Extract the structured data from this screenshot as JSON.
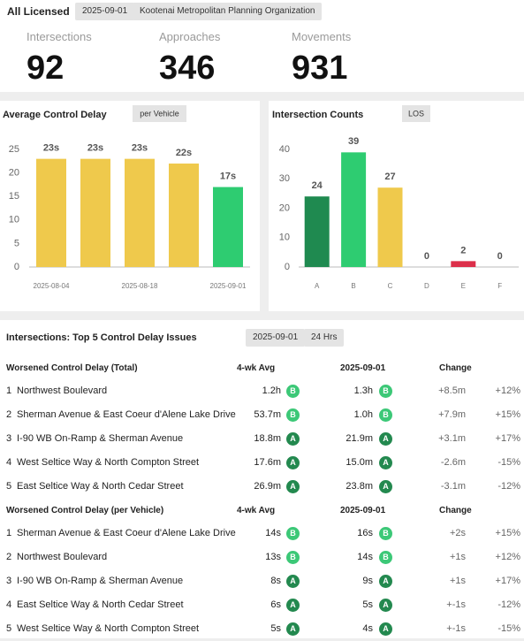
{
  "header": {
    "title": "All Licensed",
    "chips": [
      "2025-09-01",
      "Kootenai Metropolitan Planning Organization"
    ]
  },
  "kpis": [
    {
      "label": "Intersections",
      "value": 92
    },
    {
      "label": "Approaches",
      "value": 346
    },
    {
      "label": "Movements",
      "value": 931
    }
  ],
  "chart_data": [
    {
      "type": "bar",
      "title": "Average Control Delay",
      "button": "per Vehicle",
      "categories": [
        "2025-08-04",
        null,
        "2025-08-18",
        null,
        "2025-09-01"
      ],
      "values": [
        23,
        23,
        23,
        22,
        17
      ],
      "value_labels": [
        "23s",
        "23s",
        "23s",
        "22s",
        "17s"
      ],
      "colors": [
        "#efc94c",
        "#efc94c",
        "#efc94c",
        "#efc94c",
        "#2ecc71"
      ],
      "ylim": [
        0,
        25
      ],
      "yticks": [
        0,
        5,
        10,
        15,
        20,
        25
      ]
    },
    {
      "type": "bar",
      "title": "Intersection Counts",
      "button": "LOS",
      "categories": [
        "A",
        "B",
        "C",
        "D",
        "E",
        "F"
      ],
      "values": [
        24,
        39,
        27,
        0,
        2,
        0
      ],
      "colors": [
        "#1f8a50",
        "#2ecc71",
        "#efc94c",
        "#999999",
        "#dc2f4a",
        "#999999"
      ],
      "ylim": [
        0,
        40
      ],
      "yticks": [
        0,
        10,
        20,
        30,
        40
      ]
    }
  ],
  "issues": {
    "title": "Intersections: Top 5 Control Delay Issues",
    "chips": [
      "2025-09-01",
      "24 Hrs"
    ]
  },
  "grade_colors": {
    "A": "#23894f",
    "B": "#3cc877"
  },
  "tables": [
    {
      "columns": [
        "Worsened Control Delay (Total)",
        "4-wk Avg",
        "2025-09-01",
        "Change"
      ],
      "rows": [
        {
          "rank": 1,
          "name": "Northwest Boulevard",
          "avg": "1.2h",
          "avg_grade": "B",
          "cur": "1.3h",
          "cur_grade": "B",
          "change": "+8.5m",
          "pct": "+12%"
        },
        {
          "rank": 2,
          "name": "Sherman Avenue & East Coeur d'Alene Lake Drive",
          "avg": "53.7m",
          "avg_grade": "B",
          "cur": "1.0h",
          "cur_grade": "B",
          "change": "+7.9m",
          "pct": "+15%"
        },
        {
          "rank": 3,
          "name": "I-90 WB On-Ramp & Sherman Avenue",
          "avg": "18.8m",
          "avg_grade": "A",
          "cur": "21.9m",
          "cur_grade": "A",
          "change": "+3.1m",
          "pct": "+17%"
        },
        {
          "rank": 4,
          "name": "West Seltice Way & North Compton Street",
          "avg": "17.6m",
          "avg_grade": "A",
          "cur": "15.0m",
          "cur_grade": "A",
          "change": "-2.6m",
          "pct": "-15%"
        },
        {
          "rank": 5,
          "name": "East Seltice Way & North Cedar Street",
          "avg": "26.9m",
          "avg_grade": "A",
          "cur": "23.8m",
          "cur_grade": "A",
          "change": "-3.1m",
          "pct": "-12%"
        }
      ]
    },
    {
      "columns": [
        "Worsened Control Delay (per Vehicle)",
        "4-wk Avg",
        "2025-09-01",
        "Change"
      ],
      "rows": [
        {
          "rank": 1,
          "name": "Sherman Avenue & East Coeur d'Alene Lake Drive",
          "avg": "14s",
          "avg_grade": "B",
          "cur": "16s",
          "cur_grade": "B",
          "change": "+2s",
          "pct": "+15%"
        },
        {
          "rank": 2,
          "name": "Northwest Boulevard",
          "avg": "13s",
          "avg_grade": "B",
          "cur": "14s",
          "cur_grade": "B",
          "change": "+1s",
          "pct": "+12%"
        },
        {
          "rank": 3,
          "name": "I-90 WB On-Ramp & Sherman Avenue",
          "avg": "8s",
          "avg_grade": "A",
          "cur": "9s",
          "cur_grade": "A",
          "change": "+1s",
          "pct": "+17%"
        },
        {
          "rank": 4,
          "name": "East Seltice Way & North Cedar Street",
          "avg": "6s",
          "avg_grade": "A",
          "cur": "5s",
          "cur_grade": "A",
          "change": "+-1s",
          "pct": "-12%"
        },
        {
          "rank": 5,
          "name": "West Seltice Way & North Compton Street",
          "avg": "5s",
          "avg_grade": "A",
          "cur": "4s",
          "cur_grade": "A",
          "change": "+-1s",
          "pct": "-15%"
        }
      ]
    }
  ]
}
